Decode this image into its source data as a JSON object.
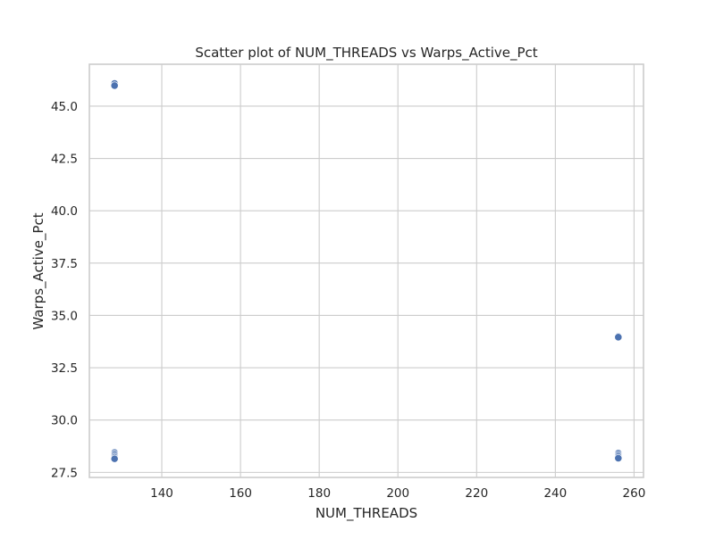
{
  "chart_data": {
    "type": "scatter",
    "title": "Scatter plot of NUM_THREADS vs Warps_Active_Pct",
    "xlabel": "NUM_THREADS",
    "ylabel": "Warps_Active_Pct",
    "xlim": [
      121.6,
      262.4
    ],
    "ylim": [
      27.26,
      47.0
    ],
    "xticks": [
      140,
      160,
      180,
      200,
      220,
      240,
      260
    ],
    "xtick_labels": [
      "140",
      "160",
      "180",
      "200",
      "220",
      "240",
      "260"
    ],
    "yticks": [
      27.5,
      30.0,
      32.5,
      35.0,
      37.5,
      40.0,
      42.5,
      45.0
    ],
    "ytick_labels": [
      "27.5",
      "30.0",
      "32.5",
      "35.0",
      "37.5",
      "40.0",
      "42.5",
      "45.0"
    ],
    "grid": true,
    "x": [
      128,
      128,
      128,
      128,
      128,
      128,
      128,
      256,
      256,
      256,
      256,
      256,
      256
    ],
    "y": [
      46.08,
      45.98,
      28.45,
      28.38,
      28.3,
      28.22,
      28.15,
      34.0,
      33.96,
      28.42,
      28.34,
      28.26,
      28.18
    ]
  }
}
